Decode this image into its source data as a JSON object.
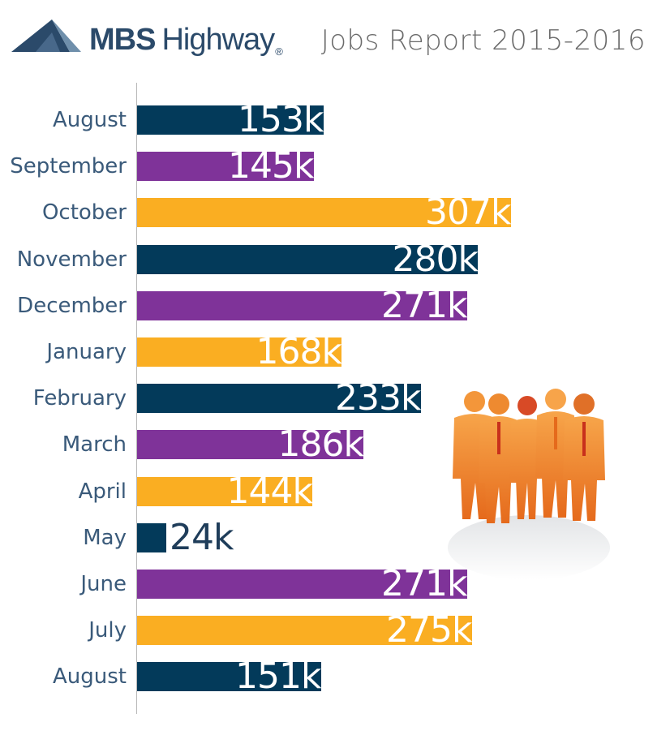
{
  "brand": {
    "name_bold": "MBS",
    "name_regular": "Highway",
    "reg_mark": "®"
  },
  "title": "Jobs Report 2015-2016",
  "colors": {
    "navy": "#033a5a",
    "purple": "#7f3399",
    "gold": "#faae22"
  },
  "chart_data": {
    "type": "bar",
    "orientation": "horizontal",
    "title": "Jobs Report 2015-2016",
    "categories": [
      "August",
      "September",
      "October",
      "November",
      "December",
      "January",
      "February",
      "March",
      "April",
      "May",
      "June",
      "July",
      "August"
    ],
    "values": [
      153,
      145,
      307,
      280,
      271,
      168,
      233,
      186,
      144,
      24,
      271,
      275,
      151
    ],
    "labels": [
      "153k",
      "145k",
      "307k",
      "280k",
      "271k",
      "168k",
      "233k",
      "186k",
      "144k",
      "24k",
      "271k",
      "275k",
      "151k"
    ],
    "bar_colors": [
      "#033a5a",
      "#7f3399",
      "#faae22",
      "#033a5a",
      "#7f3399",
      "#faae22",
      "#033a5a",
      "#7f3399",
      "#faae22",
      "#033a5a",
      "#7f3399",
      "#faae22",
      "#033a5a"
    ],
    "xlim": [
      0,
      307
    ],
    "grid": false,
    "legend": "none"
  }
}
